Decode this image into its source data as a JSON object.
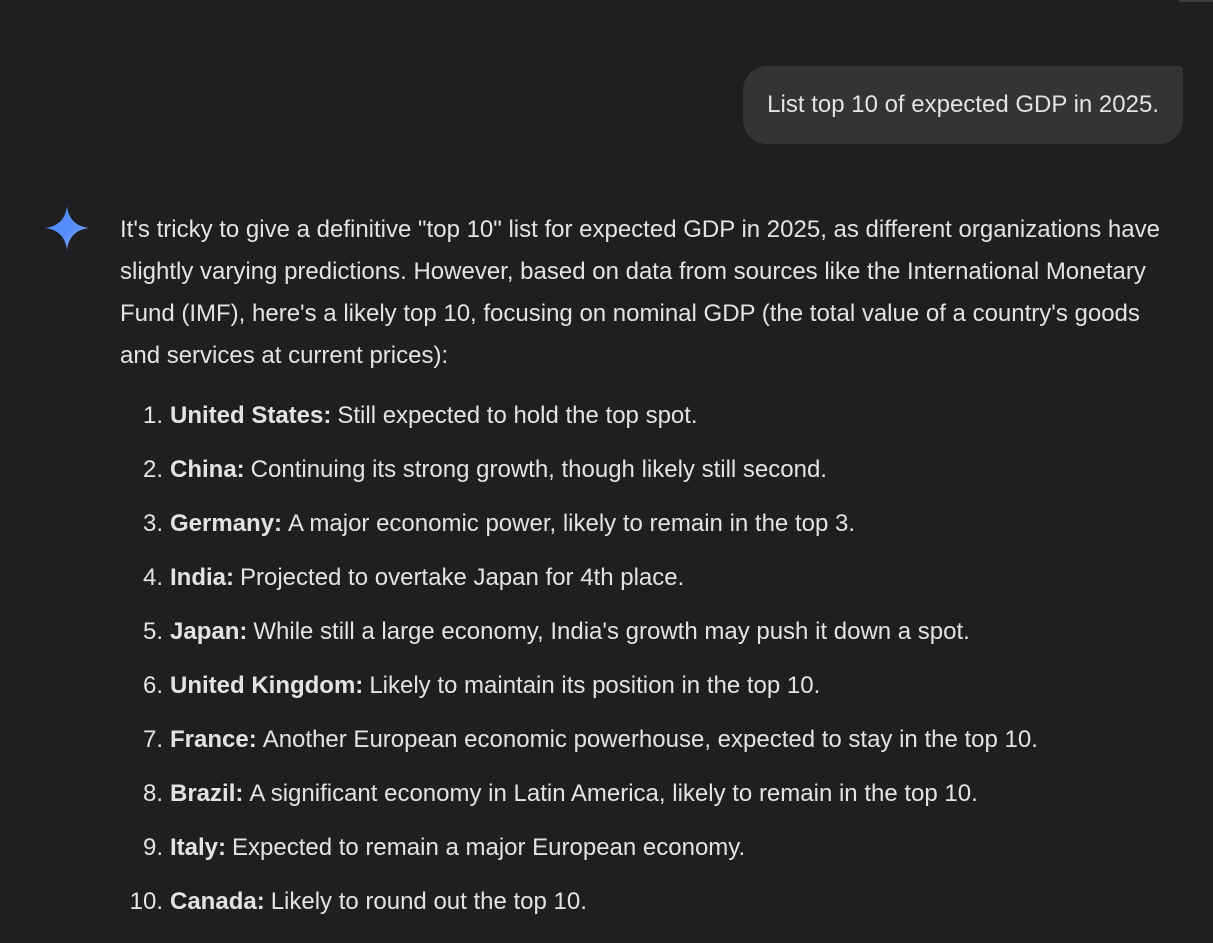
{
  "user_message": "List top 10 of expected GDP in 2025.",
  "assistant": {
    "avatar_icon": "gemini-sparkle-icon",
    "intro": "It's tricky to give a definitive \"top 10\" list for expected GDP in 2025, as different organizations have slightly varying predictions. However, based on data from sources like the International Monetary Fund (IMF), here's a likely top 10, focusing on nominal GDP (the total value of a country's goods and services at current prices):",
    "items": [
      {
        "num": "1.",
        "country": "United States:",
        "text": "Still expected to hold the top spot."
      },
      {
        "num": "2.",
        "country": "China:",
        "text": "Continuing its strong growth, though likely still second."
      },
      {
        "num": "3.",
        "country": "Germany:",
        "text": "A major economic power, likely to remain in the top 3."
      },
      {
        "num": "4.",
        "country": "India:",
        "text": "Projected to overtake Japan for 4th place."
      },
      {
        "num": "5.",
        "country": "Japan:",
        "text": "While still a large economy, India's growth may push it down a spot."
      },
      {
        "num": "6.",
        "country": "United Kingdom:",
        "text": "Likely to maintain its position in the top 10."
      },
      {
        "num": "7.",
        "country": "France:",
        "text": "Another European economic powerhouse, expected to stay in the top 10."
      },
      {
        "num": "8.",
        "country": "Brazil:",
        "text": "A significant economy in Latin America, likely to remain in the top 10."
      },
      {
        "num": "9.",
        "country": "Italy:",
        "text": "Expected to remain a major European economy."
      },
      {
        "num": "10.",
        "country": "Canada:",
        "text": "Likely to round out the top 10."
      }
    ]
  },
  "colors": {
    "background": "#1f1f21",
    "user_bubble": "#333436",
    "text": "#e3e3e3",
    "sparkle_start": "#4f8ef7",
    "sparkle_end": "#8ab4f8"
  }
}
